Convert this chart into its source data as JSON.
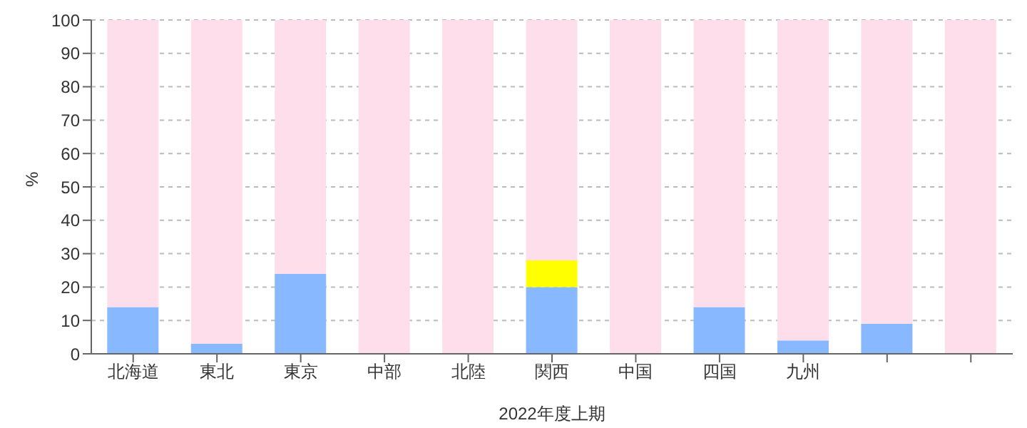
{
  "chart_data": {
    "type": "bar",
    "stacked": true,
    "xlabel": "2022年度上期",
    "ylabel": "%",
    "categories": [
      "北海道",
      "東北",
      "東京",
      "中部",
      "北陸",
      "関西",
      "中国",
      "四国",
      "九州",
      null,
      null
    ],
    "series": [
      {
        "color": "#88b8ff",
        "values": [
          14,
          3,
          24,
          0,
          0,
          20,
          0,
          14,
          4,
          9,
          0
        ]
      },
      {
        "color": "#ffff00",
        "values": [
          0,
          0,
          0,
          0,
          0,
          8,
          0,
          0,
          0,
          0,
          0
        ]
      },
      {
        "color": "#ffdeec",
        "values": [
          86,
          97,
          76,
          100,
          100,
          72,
          100,
          86,
          96,
          91,
          100
        ]
      }
    ],
    "ylim": [
      0,
      100
    ],
    "yticks": [
      0,
      10,
      20,
      30,
      40,
      50,
      60,
      70,
      80,
      90,
      100
    ],
    "grid": "y",
    "legend": false
  }
}
